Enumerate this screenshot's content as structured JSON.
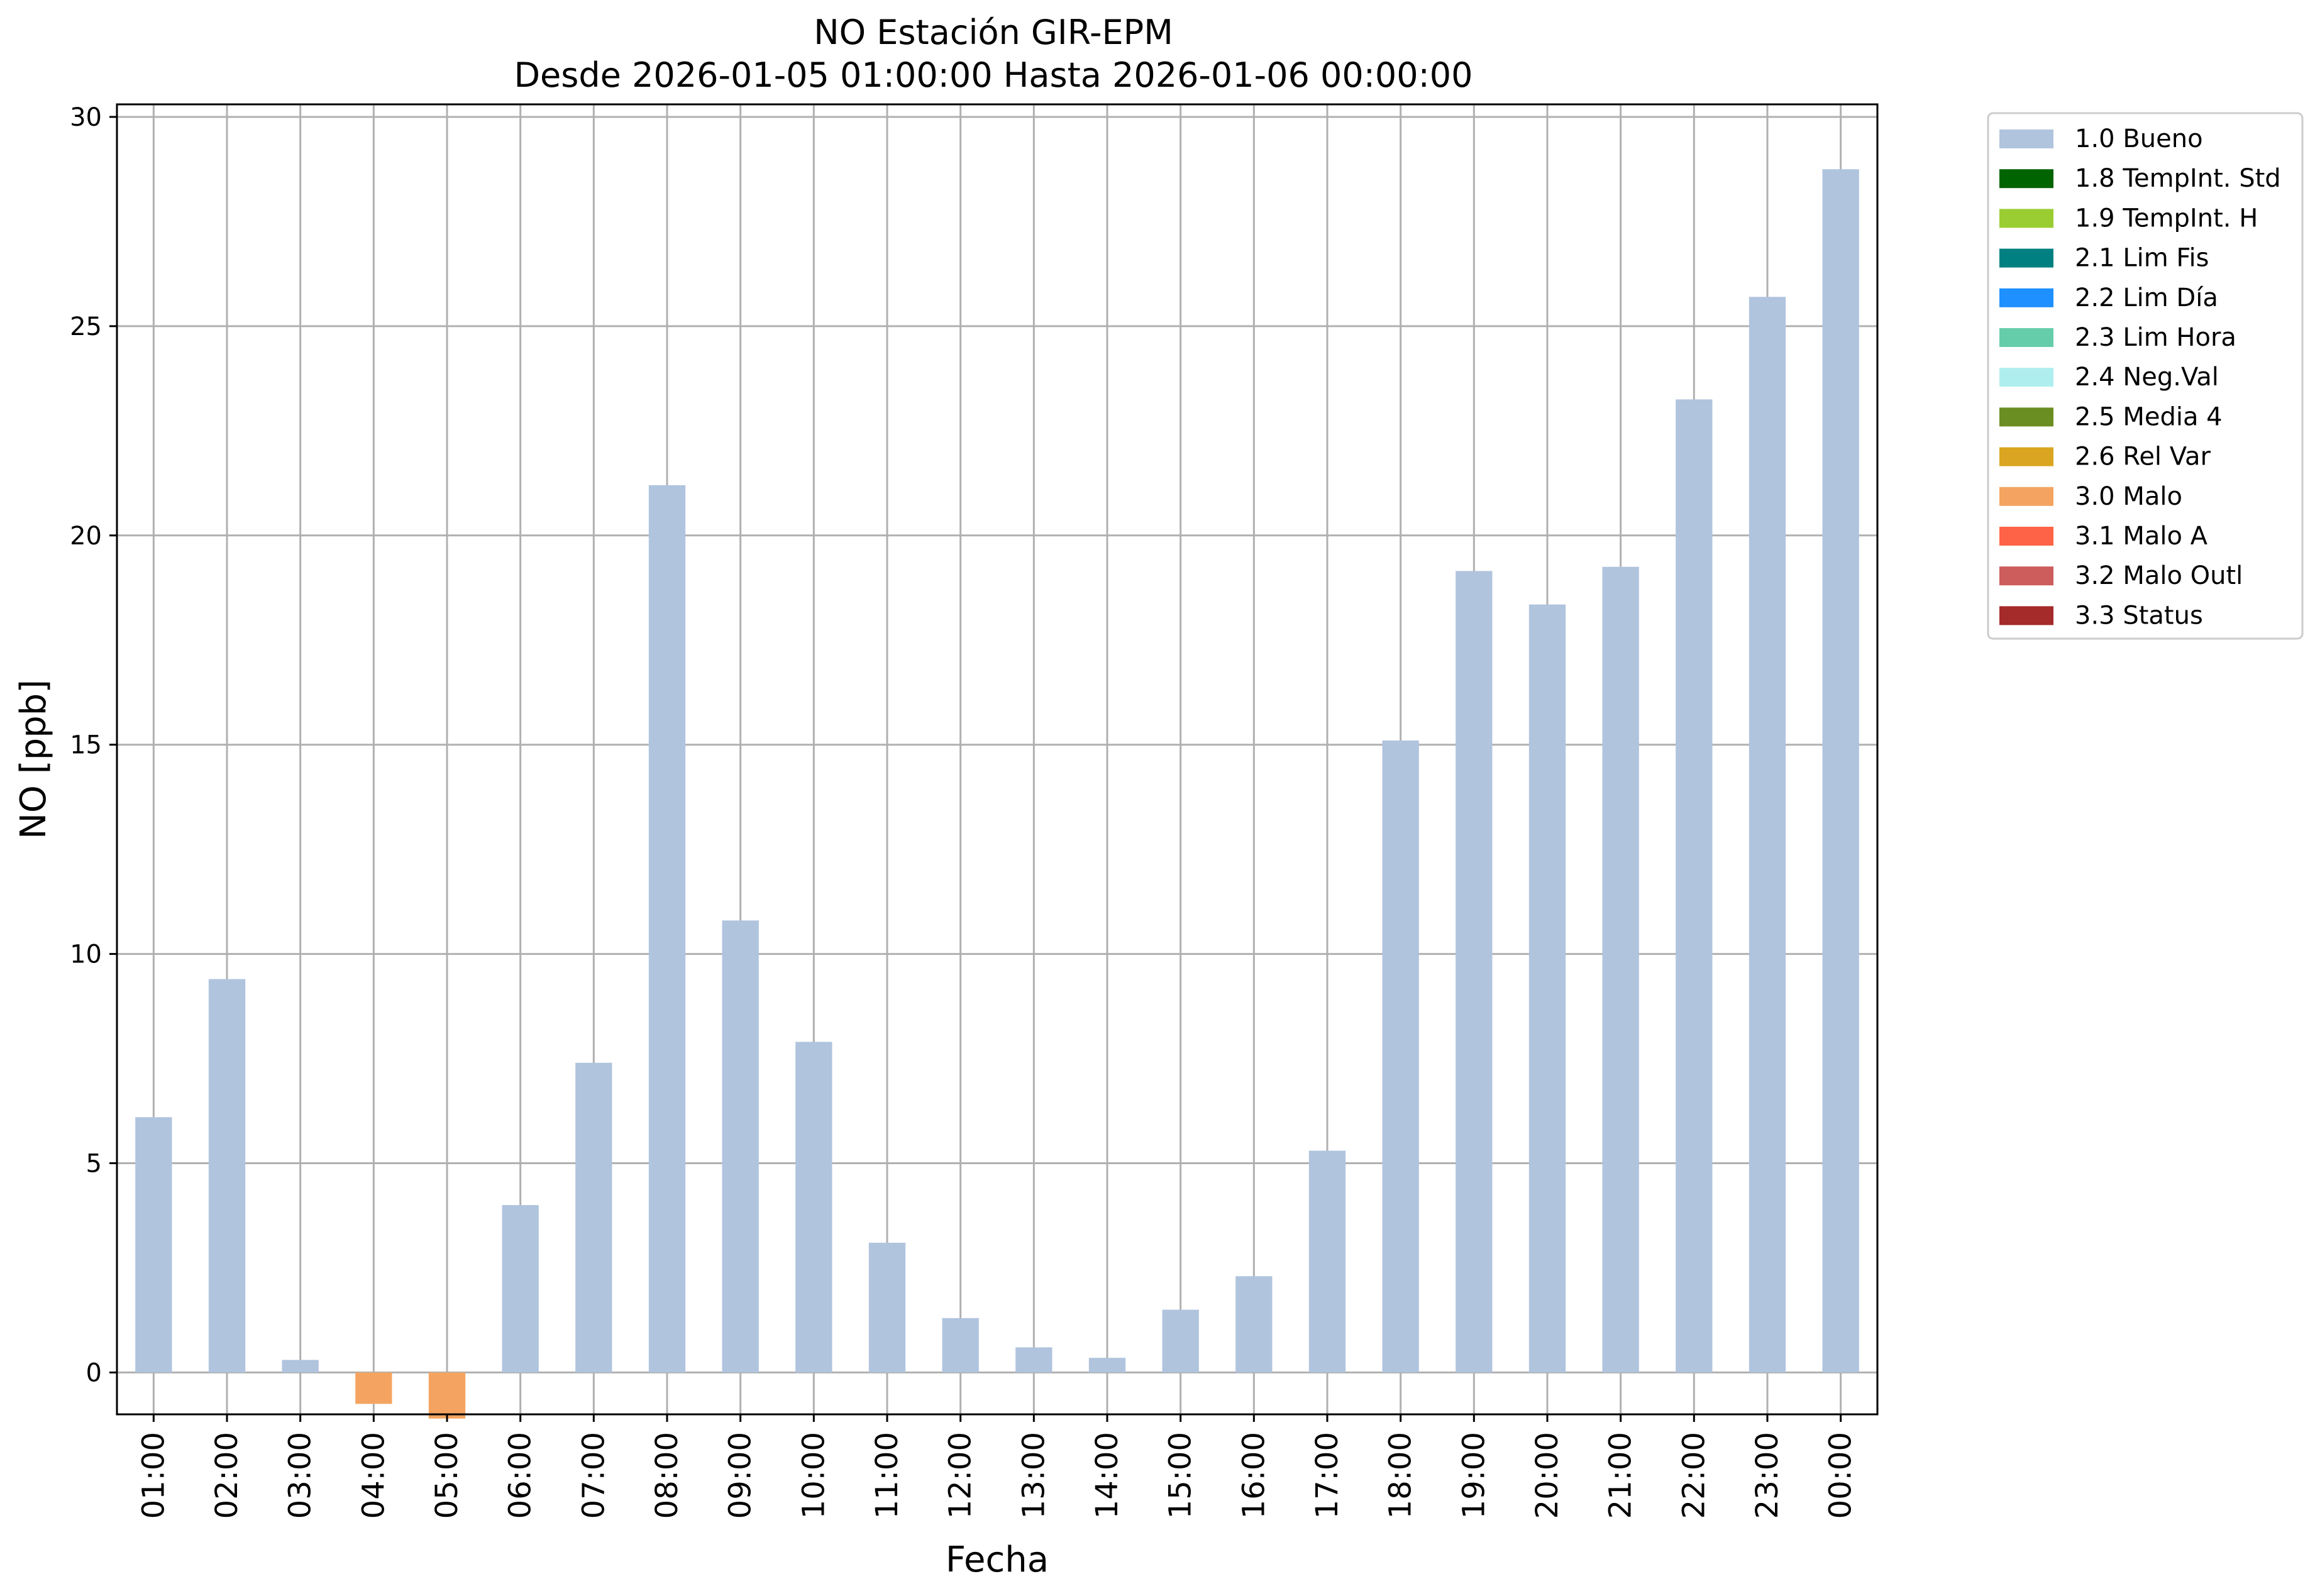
{
  "chart_data": {
    "type": "bar",
    "title": "NO Estación GIR-EPM",
    "subtitle": "Desde 2026-01-05 01:00:00 Hasta 2026-01-06 00:00:00",
    "xlabel": "Fecha",
    "ylabel": "NO [ppb]",
    "ylim": [
      -1.0,
      30.3
    ],
    "yticks": [
      0,
      5,
      10,
      15,
      20,
      25,
      30
    ],
    "grid": true,
    "legend_position": "outside-top-right",
    "categories": [
      "01:00",
      "02:00",
      "03:00",
      "04:00",
      "05:00",
      "06:00",
      "07:00",
      "08:00",
      "09:00",
      "10:00",
      "11:00",
      "12:00",
      "13:00",
      "14:00",
      "15:00",
      "16:00",
      "17:00",
      "18:00",
      "19:00",
      "20:00",
      "21:00",
      "22:00",
      "23:00",
      "00:00"
    ],
    "values": [
      6.1,
      9.4,
      0.3,
      -0.75,
      -1.1,
      4.0,
      7.4,
      21.2,
      10.8,
      7.9,
      3.1,
      1.3,
      0.6,
      0.35,
      1.5,
      2.3,
      5.3,
      15.1,
      19.15,
      18.35,
      19.25,
      23.25,
      25.7,
      28.75
    ],
    "flags": [
      "1.0 Bueno",
      "1.0 Bueno",
      "1.0 Bueno",
      "3.0 Malo",
      "3.0 Malo",
      "1.0 Bueno",
      "1.0 Bueno",
      "1.0 Bueno",
      "1.0 Bueno",
      "1.0 Bueno",
      "1.0 Bueno",
      "1.0 Bueno",
      "1.0 Bueno",
      "1.0 Bueno",
      "1.0 Bueno",
      "1.0 Bueno",
      "1.0 Bueno",
      "1.0 Bueno",
      "1.0 Bueno",
      "1.0 Bueno",
      "1.0 Bueno",
      "1.0 Bueno",
      "1.0 Bueno",
      "1.0 Bueno"
    ],
    "legend": [
      {
        "label": "1.0 Bueno",
        "color": "#b0c4de"
      },
      {
        "label": "1.8 TempInt. Std",
        "color": "#006400"
      },
      {
        "label": "1.9 TempInt. H",
        "color": "#9acd32"
      },
      {
        "label": "2.1 Lim Fis",
        "color": "#008080"
      },
      {
        "label": "2.2 Lim Día",
        "color": "#1e90ff"
      },
      {
        "label": "2.3 Lim Hora",
        "color": "#66cdaa"
      },
      {
        "label": "2.4 Neg.Val",
        "color": "#afeeee"
      },
      {
        "label": "2.5 Media 4",
        "color": "#6b8e23"
      },
      {
        "label": "2.6 Rel Var",
        "color": "#daa520"
      },
      {
        "label": "3.0 Malo",
        "color": "#f4a460"
      },
      {
        "label": "3.1 Malo A",
        "color": "#ff6347"
      },
      {
        "label": "3.2 Malo Outl",
        "color": "#cd5c5c"
      },
      {
        "label": "3.3 Status",
        "color": "#a52a2a"
      }
    ]
  }
}
